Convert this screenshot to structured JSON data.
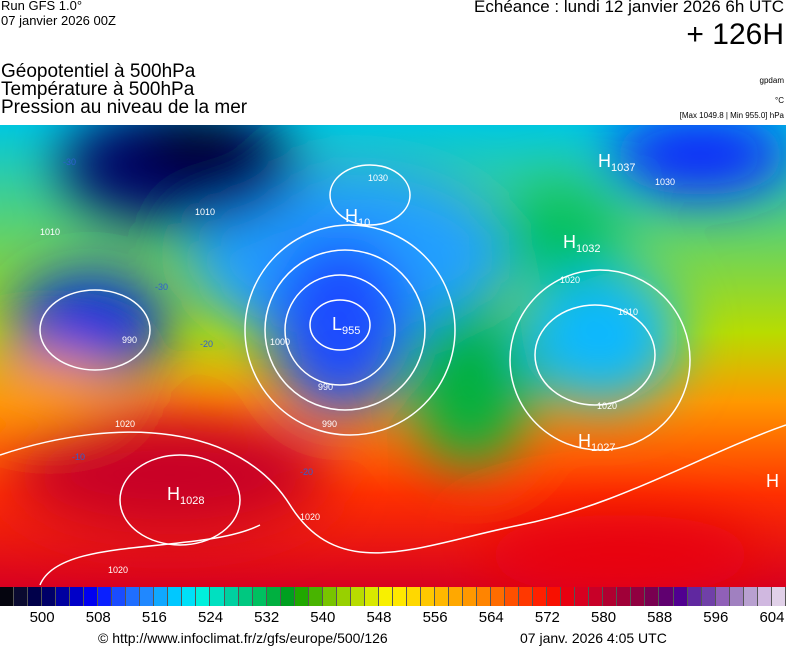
{
  "header": {
    "run": "Run GFS 1.0°",
    "run_date": "07 janvier 2026 00Z",
    "echeance": "Echéance : lundi 12 janvier 2026 6h UTC",
    "lead_time": "+ 126H",
    "titles": [
      "Géopotentiel à 500hPa",
      "Température à 500hPa",
      "Pression au niveau de la mer"
    ],
    "units": [
      "gpdam",
      "°C",
      "[Max 1049.8 | Min 955.0] hPa"
    ]
  },
  "map": {
    "pressure_centers": [
      {
        "type": "L",
        "value": "955"
      },
      {
        "type": "H",
        "value": "1028"
      },
      {
        "type": "H",
        "value": "1027"
      },
      {
        "type": "H",
        "value": "1032"
      },
      {
        "type": "H",
        "value": "1037"
      },
      {
        "type": "H",
        "value": "10"
      },
      {
        "type": "H",
        "value": ""
      }
    ],
    "isobar_labels": [
      "990",
      "990",
      "990",
      "1000",
      "1010",
      "1010",
      "1020",
      "1020",
      "1020",
      "1020",
      "1030",
      "1010",
      "1020",
      "1030"
    ],
    "temperature_labels": [
      "-30",
      "-20",
      "-10",
      "-20",
      "-30"
    ]
  },
  "legend": {
    "colors": [
      "#05050f",
      "#0a0a30",
      "#00004a",
      "#000068",
      "#0000a0",
      "#0000c8",
      "#0000f0",
      "#0a20ff",
      "#1a4cff",
      "#1f6eff",
      "#2088ff",
      "#10a8ff",
      "#00c8ff",
      "#00e0f8",
      "#00f0dc",
      "#00e0c0",
      "#00d0a0",
      "#00c880",
      "#00c060",
      "#00b040",
      "#00a020",
      "#20a800",
      "#48b400",
      "#78c400",
      "#98d000",
      "#b8dc00",
      "#d8e800",
      "#f8f000",
      "#ffe800",
      "#ffd800",
      "#ffc800",
      "#ffb800",
      "#ffa800",
      "#ff9800",
      "#ff8400",
      "#ff6c00",
      "#ff5000",
      "#ff3800",
      "#ff2000",
      "#f81000",
      "#e80010",
      "#d80020",
      "#c80028",
      "#b00030",
      "#a00038",
      "#900040",
      "#780050",
      "#600070",
      "#500090",
      "#6028a0",
      "#7040a8",
      "#9060b8",
      "#a080c0",
      "#b8a0d0",
      "#d0b8e0",
      "#e0d0e8"
    ],
    "ticks": [
      "500",
      "508",
      "516",
      "524",
      "532",
      "540",
      "548",
      "556",
      "564",
      "572",
      "580",
      "588",
      "596",
      "604"
    ]
  },
  "footer": {
    "url": "© http://www.infoclimat.fr/z/gfs/europe/500/126",
    "generated": "07 janv. 2026  4:05 UTC"
  }
}
